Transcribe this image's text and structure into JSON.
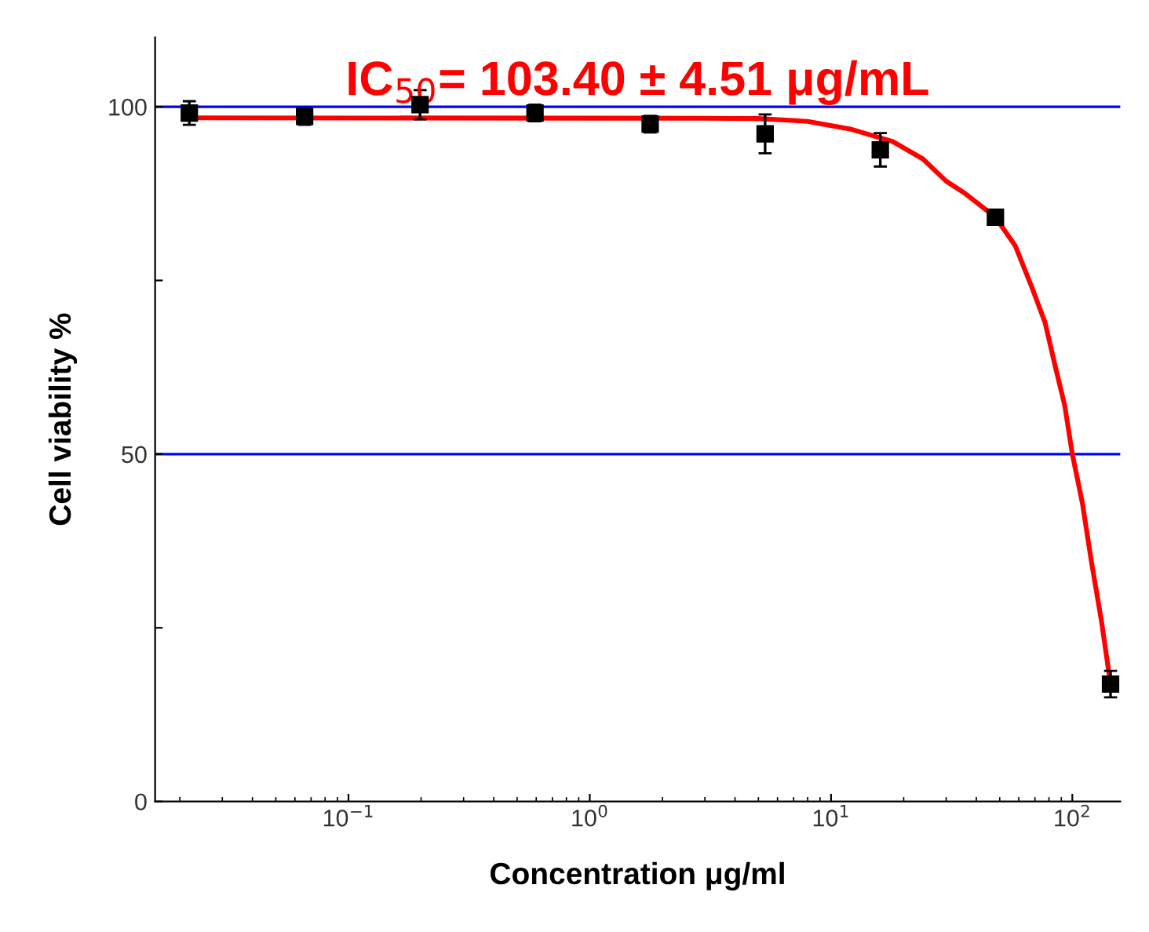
{
  "chart_data": {
    "type": "scatter",
    "title": "IC$_{50}$= 103.40 ± 4.51 μg/mL",
    "xlabel": "Concentration μg/ml",
    "ylabel": "Cell viability %",
    "log": "x",
    "xlim": [
      0.0158,
      158
    ],
    "ylim": [
      0,
      110
    ],
    "xticks": [
      {
        "value": 0.1,
        "label": "10$^{−1}$"
      },
      {
        "value": 1,
        "label": "10$^{0}$"
      },
      {
        "value": 10,
        "label": "10$^{1}$"
      },
      {
        "value": 100,
        "label": "10$^{2}$"
      }
    ],
    "yticks": [
      0,
      {
        "value": 25,
        "label": null
      },
      50,
      {
        "value": 75,
        "label": null
      },
      100
    ],
    "series": [
      {
        "marker": "square",
        "color": "#000000",
        "x": [
          0.0219,
          0.0658,
          0.198,
          0.593,
          1.78,
          5.33,
          16,
          48,
          144
        ],
        "values": [
          99.1,
          98.6,
          100.3,
          99.1,
          97.5,
          96.1,
          93.8,
          84.1,
          16.9
        ],
        "errors": [
          1.7,
          1.2,
          2.1,
          1.2,
          1.2,
          2.8,
          2.4,
          1.0,
          1.9
        ]
      },
      {
        "type": "line",
        "color": "#ff0000",
        "x": [
          0.0219,
          3,
          5,
          8,
          12,
          18,
          24,
          30,
          36,
          48,
          58,
          68,
          77,
          85,
          93,
          100,
          110,
          120,
          132,
          144
        ],
        "values": [
          98.4,
          98.35,
          98.3,
          97.9,
          96.8,
          95,
          92.5,
          89.3,
          87.5,
          84.1,
          80,
          74,
          69,
          62.6,
          57,
          50,
          43,
          34.5,
          26,
          16.9
        ]
      }
    ],
    "ref_lines": [
      {
        "axis": "y",
        "value": 50,
        "color": "#0000ff"
      },
      {
        "axis": "y",
        "value": 100,
        "color": "#0000ff"
      }
    ]
  }
}
